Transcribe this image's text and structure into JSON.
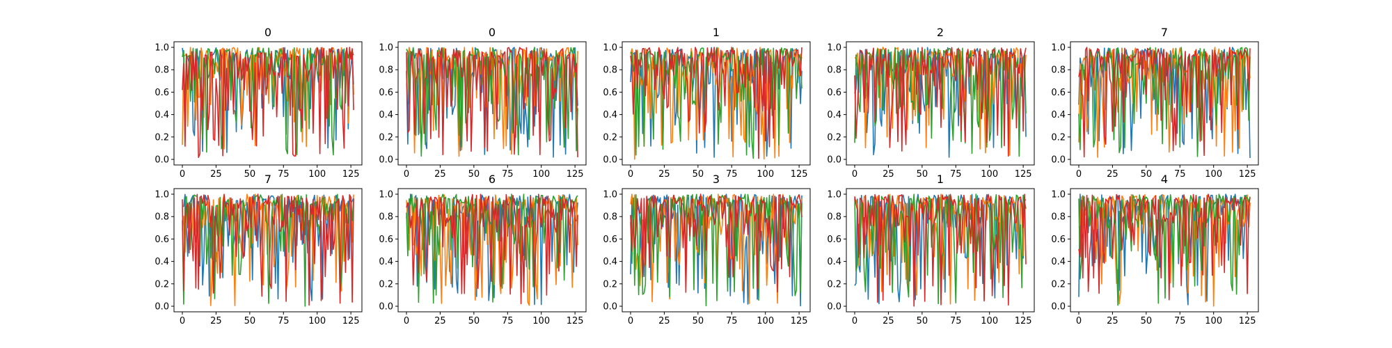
{
  "chart_data": {
    "type": "line",
    "layout": "grid 2 rows x 5 columns",
    "series_colors": [
      "#1f77b4",
      "#ff7f0e",
      "#2ca02c",
      "#d62728"
    ],
    "x_range": [
      0,
      127
    ],
    "xticks": [
      0,
      25,
      50,
      75,
      100,
      125
    ],
    "grid": false,
    "panels": [
      {
        "title": "0",
        "ylim": [
          0,
          1
        ],
        "yticks": [
          "0.0",
          "0.2",
          "0.4",
          "0.6",
          "0.8",
          "1.0"
        ],
        "series_count": 4
      },
      {
        "title": "0",
        "ylim": [
          0,
          1
        ],
        "yticks": [
          "0.0",
          "0.2",
          "0.4",
          "0.6",
          "0.8",
          "1.0"
        ],
        "series_count": 4
      },
      {
        "title": "1",
        "ylim": [
          0,
          1
        ],
        "yticks": [
          "0.0",
          "0.2",
          "0.4",
          "0.6",
          "0.8",
          "1.0"
        ],
        "series_count": 4
      },
      {
        "title": "2",
        "ylim": [
          0,
          1
        ],
        "yticks": [
          "0.0",
          "0.2",
          "0.4",
          "0.6",
          "0.8",
          "1.0"
        ],
        "series_count": 4
      },
      {
        "title": "7",
        "ylim": [
          0,
          1
        ],
        "yticks": [
          "0.0",
          "0.2",
          "0.4",
          "0.6",
          "0.8",
          "1.0"
        ],
        "series_count": 4
      },
      {
        "title": "7",
        "ylim": [
          0,
          1
        ],
        "yticks": [
          "0.0",
          "0.2",
          "0.4",
          "0.6",
          "0.8",
          "1.0"
        ],
        "series_count": 4
      },
      {
        "title": "6",
        "ylim": [
          0,
          1
        ],
        "yticks": [
          "0.0",
          "0.2",
          "0.4",
          "0.6",
          "0.8",
          "1.0"
        ],
        "series_count": 4
      },
      {
        "title": "3",
        "ylim": [
          0,
          1
        ],
        "yticks": [
          "0.0",
          "0.2",
          "0.4",
          "0.6",
          "0.8",
          "1.0"
        ],
        "series_count": 4
      },
      {
        "title": "1",
        "ylim": [
          0,
          1
        ],
        "yticks": [
          "0.0",
          "0.2",
          "0.4",
          "0.6",
          "0.8",
          "1.0"
        ],
        "series_count": 4
      },
      {
        "title": "4",
        "ylim": [
          0,
          1
        ],
        "yticks": [
          "0.0",
          "0.2",
          "0.4",
          "0.6",
          "0.8",
          "1.0"
        ],
        "series_count": 4
      }
    ]
  }
}
